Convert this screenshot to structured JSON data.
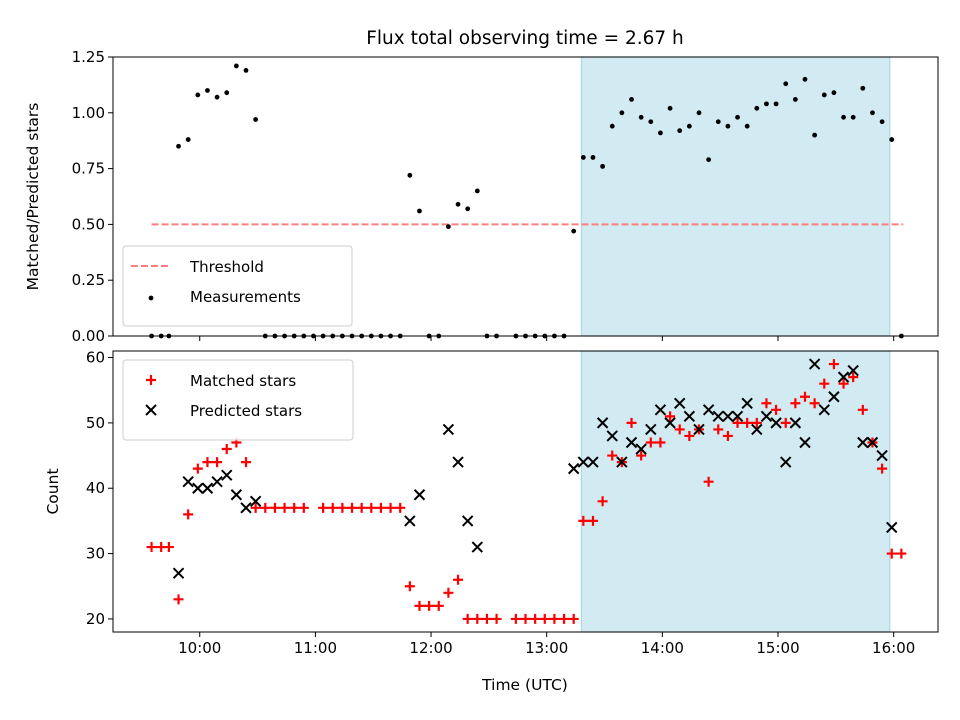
{
  "chart_data": [
    {
      "type": "scatter",
      "title": "Flux total observing time = 2.67 h",
      "xlabel": "",
      "ylabel": "Matched/Predicted stars",
      "xlim": [
        "09:15",
        "16:23"
      ],
      "ylim": [
        0,
        1.25
      ],
      "yticks": [
        "0.00",
        "0.25",
        "0.50",
        "0.75",
        "1.00",
        "1.25"
      ],
      "xticks": [
        "10:00",
        "11:00",
        "12:00",
        "13:00",
        "14:00",
        "15:00",
        "16:00"
      ],
      "xtick_labels_shown": false,
      "grid": false,
      "legend_position": "lower-left",
      "highlight_span": {
        "start": "13:18",
        "end": "15:58",
        "color": "#add8e6"
      },
      "threshold": {
        "name": "Threshold",
        "value": 0.5,
        "x_start": "09:35",
        "x_end": "16:05",
        "color": "#ff7f7f",
        "style": "dashed"
      },
      "series": [
        {
          "name": "Measurements",
          "color": "#000000",
          "marker": "dot",
          "points": [
            [
              "09:35",
              0
            ],
            [
              "09:40",
              0
            ],
            [
              "09:44",
              0
            ],
            [
              "09:49",
              0.85
            ],
            [
              "09:54",
              0.88
            ],
            [
              "09:59",
              1.08
            ],
            [
              "10:04",
              1.1
            ],
            [
              "10:09",
              1.07
            ],
            [
              "10:14",
              1.09
            ],
            [
              "10:19",
              1.21
            ],
            [
              "10:24",
              1.19
            ],
            [
              "10:29",
              0.97
            ],
            [
              "10:34",
              0
            ],
            [
              "10:39",
              0
            ],
            [
              "10:44",
              0
            ],
            [
              "10:49",
              0
            ],
            [
              "10:54",
              0
            ],
            [
              "10:59",
              0
            ],
            [
              "11:04",
              0
            ],
            [
              "11:09",
              0
            ],
            [
              "11:14",
              0
            ],
            [
              "11:19",
              0
            ],
            [
              "11:24",
              0
            ],
            [
              "11:29",
              0
            ],
            [
              "11:34",
              0
            ],
            [
              "11:39",
              0
            ],
            [
              "11:44",
              0
            ],
            [
              "11:49",
              0.72
            ],
            [
              "11:54",
              0.56
            ],
            [
              "11:59",
              0
            ],
            [
              "12:04",
              0
            ],
            [
              "12:09",
              0.49
            ],
            [
              "12:14",
              0.59
            ],
            [
              "12:19",
              0.57
            ],
            [
              "12:24",
              0.65
            ],
            [
              "12:29",
              0
            ],
            [
              "12:34",
              0
            ],
            [
              "12:44",
              0
            ],
            [
              "12:49",
              0
            ],
            [
              "12:54",
              0
            ],
            [
              "12:59",
              0
            ],
            [
              "13:04",
              0
            ],
            [
              "13:09",
              0
            ],
            [
              "13:14",
              0.47
            ],
            [
              "13:19",
              0.8
            ],
            [
              "13:24",
              0.8
            ],
            [
              "13:29",
              0.76
            ],
            [
              "13:34",
              0.94
            ],
            [
              "13:39",
              1.0
            ],
            [
              "13:44",
              1.06
            ],
            [
              "13:49",
              0.98
            ],
            [
              "13:54",
              0.96
            ],
            [
              "13:59",
              0.91
            ],
            [
              "14:04",
              1.02
            ],
            [
              "14:09",
              0.92
            ],
            [
              "14:14",
              0.94
            ],
            [
              "14:19",
              1.0
            ],
            [
              "14:24",
              0.79
            ],
            [
              "14:29",
              0.96
            ],
            [
              "14:34",
              0.94
            ],
            [
              "14:39",
              0.98
            ],
            [
              "14:44",
              0.94
            ],
            [
              "14:49",
              1.02
            ],
            [
              "14:54",
              1.04
            ],
            [
              "14:59",
              1.04
            ],
            [
              "15:04",
              1.13
            ],
            [
              "15:09",
              1.06
            ],
            [
              "15:14",
              1.15
            ],
            [
              "15:19",
              0.9
            ],
            [
              "15:24",
              1.08
            ],
            [
              "15:29",
              1.09
            ],
            [
              "15:34",
              0.98
            ],
            [
              "15:39",
              0.98
            ],
            [
              "15:44",
              1.11
            ],
            [
              "15:49",
              1.0
            ],
            [
              "15:54",
              0.96
            ],
            [
              "15:59",
              0.88
            ],
            [
              "16:04",
              0
            ]
          ]
        }
      ]
    },
    {
      "type": "scatter",
      "title": "",
      "xlabel": "Time (UTC)",
      "ylabel": "Count",
      "xlim": [
        "09:15",
        "16:23"
      ],
      "ylim": [
        18,
        61
      ],
      "yticks": [
        "20",
        "30",
        "40",
        "50",
        "60"
      ],
      "xticks": [
        "10:00",
        "11:00",
        "12:00",
        "13:00",
        "14:00",
        "15:00",
        "16:00"
      ],
      "grid": false,
      "legend_position": "upper-left",
      "highlight_span": {
        "start": "13:18",
        "end": "15:58",
        "color": "#add8e6"
      },
      "series": [
        {
          "name": "Matched stars",
          "color": "#ff0000",
          "marker": "plus",
          "points": [
            [
              "09:35",
              31
            ],
            [
              "09:40",
              31
            ],
            [
              "09:44",
              31
            ],
            [
              "09:49",
              23
            ],
            [
              "09:54",
              36
            ],
            [
              "09:59",
              43
            ],
            [
              "10:04",
              44
            ],
            [
              "10:09",
              44
            ],
            [
              "10:14",
              46
            ],
            [
              "10:19",
              47
            ],
            [
              "10:24",
              44
            ],
            [
              "10:29",
              37
            ],
            [
              "10:34",
              37
            ],
            [
              "10:39",
              37
            ],
            [
              "10:44",
              37
            ],
            [
              "10:49",
              37
            ],
            [
              "10:54",
              37
            ],
            [
              "11:04",
              37
            ],
            [
              "11:09",
              37
            ],
            [
              "11:14",
              37
            ],
            [
              "11:19",
              37
            ],
            [
              "11:24",
              37
            ],
            [
              "11:29",
              37
            ],
            [
              "11:34",
              37
            ],
            [
              "11:39",
              37
            ],
            [
              "11:44",
              37
            ],
            [
              "11:49",
              25
            ],
            [
              "11:54",
              22
            ],
            [
              "11:59",
              22
            ],
            [
              "12:04",
              22
            ],
            [
              "12:09",
              24
            ],
            [
              "12:14",
              26
            ],
            [
              "12:19",
              20
            ],
            [
              "12:24",
              20
            ],
            [
              "12:29",
              20
            ],
            [
              "12:34",
              20
            ],
            [
              "12:44",
              20
            ],
            [
              "12:49",
              20
            ],
            [
              "12:54",
              20
            ],
            [
              "12:59",
              20
            ],
            [
              "13:04",
              20
            ],
            [
              "13:09",
              20
            ],
            [
              "13:14",
              20
            ],
            [
              "13:19",
              35
            ],
            [
              "13:24",
              35
            ],
            [
              "13:29",
              38
            ],
            [
              "13:34",
              45
            ],
            [
              "13:39",
              44
            ],
            [
              "13:44",
              50
            ],
            [
              "13:49",
              45
            ],
            [
              "13:54",
              47
            ],
            [
              "13:59",
              47
            ],
            [
              "14:04",
              51
            ],
            [
              "14:09",
              49
            ],
            [
              "14:14",
              48
            ],
            [
              "14:19",
              49
            ],
            [
              "14:24",
              41
            ],
            [
              "14:29",
              49
            ],
            [
              "14:34",
              48
            ],
            [
              "14:39",
              50
            ],
            [
              "14:44",
              50
            ],
            [
              "14:49",
              50
            ],
            [
              "14:54",
              53
            ],
            [
              "14:59",
              52
            ],
            [
              "15:04",
              50
            ],
            [
              "15:09",
              53
            ],
            [
              "15:14",
              54
            ],
            [
              "15:19",
              53
            ],
            [
              "15:24",
              56
            ],
            [
              "15:29",
              59
            ],
            [
              "15:34",
              56
            ],
            [
              "15:39",
              57
            ],
            [
              "15:44",
              52
            ],
            [
              "15:49",
              47
            ],
            [
              "15:54",
              43
            ],
            [
              "15:59",
              30
            ],
            [
              "16:04",
              30
            ]
          ]
        },
        {
          "name": "Predicted stars",
          "color": "#000000",
          "marker": "x",
          "points": [
            [
              "09:49",
              27
            ],
            [
              "09:54",
              41
            ],
            [
              "09:59",
              40
            ],
            [
              "10:04",
              40
            ],
            [
              "10:09",
              41
            ],
            [
              "10:14",
              42
            ],
            [
              "10:19",
              39
            ],
            [
              "10:24",
              37
            ],
            [
              "10:29",
              38
            ],
            [
              "11:49",
              35
            ],
            [
              "11:54",
              39
            ],
            [
              "12:09",
              49
            ],
            [
              "12:14",
              44
            ],
            [
              "12:19",
              35
            ],
            [
              "12:24",
              31
            ],
            [
              "13:14",
              43
            ],
            [
              "13:19",
              44
            ],
            [
              "13:24",
              44
            ],
            [
              "13:29",
              50
            ],
            [
              "13:34",
              48
            ],
            [
              "13:39",
              44
            ],
            [
              "13:44",
              47
            ],
            [
              "13:49",
              46
            ],
            [
              "13:54",
              49
            ],
            [
              "13:59",
              52
            ],
            [
              "14:04",
              50
            ],
            [
              "14:09",
              53
            ],
            [
              "14:14",
              51
            ],
            [
              "14:19",
              49
            ],
            [
              "14:24",
              52
            ],
            [
              "14:29",
              51
            ],
            [
              "14:34",
              51
            ],
            [
              "14:39",
              51
            ],
            [
              "14:44",
              53
            ],
            [
              "14:49",
              49
            ],
            [
              "14:54",
              51
            ],
            [
              "14:59",
              50
            ],
            [
              "15:04",
              44
            ],
            [
              "15:09",
              50
            ],
            [
              "15:14",
              47
            ],
            [
              "15:19",
              59
            ],
            [
              "15:24",
              52
            ],
            [
              "15:29",
              54
            ],
            [
              "15:34",
              57
            ],
            [
              "15:39",
              58
            ],
            [
              "15:44",
              47
            ],
            [
              "15:49",
              47
            ],
            [
              "15:54",
              45
            ],
            [
              "15:59",
              34
            ]
          ]
        }
      ]
    }
  ]
}
